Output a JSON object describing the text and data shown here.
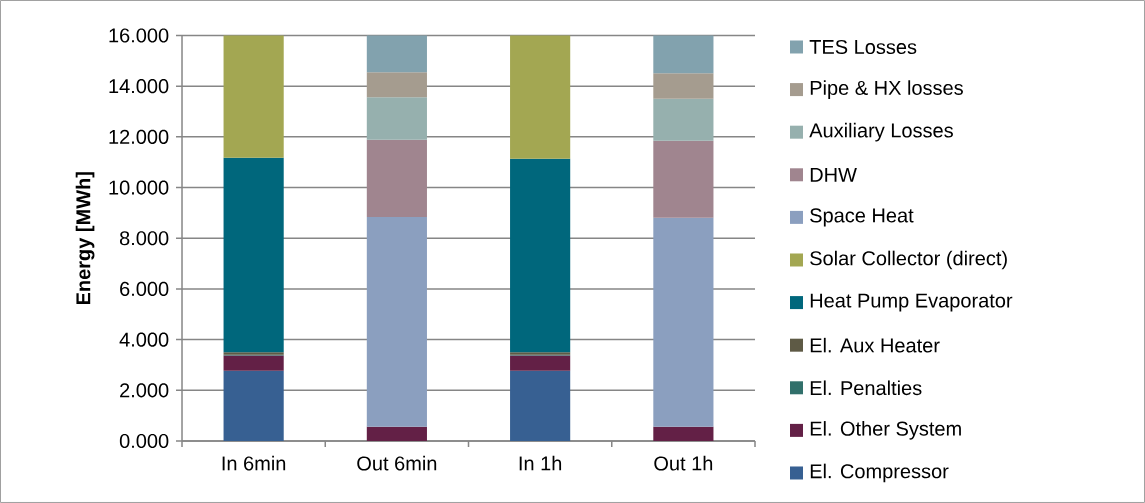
{
  "chart_data": {
    "type": "bar",
    "stacked": true,
    "ylabel": "Energy [MWh]",
    "categories": [
      "In 6min",
      "Out 6min",
      "In 1h",
      "Out 1h"
    ],
    "series": [
      {
        "name": "El. Compressor",
        "color": "#376092",
        "values": [
          2.77,
          null,
          2.77,
          null
        ]
      },
      {
        "name": "El. Other System",
        "color": "#632046",
        "values": [
          0.6,
          0.56,
          0.6,
          0.56
        ]
      },
      {
        "name": "El. Penalties",
        "color": "#31706b",
        "values": [
          0.03,
          null,
          0.03,
          null
        ]
      },
      {
        "name": "El. Aux Heater",
        "color": "#5e5a45",
        "values": [
          0.1,
          null,
          0.1,
          null
        ]
      },
      {
        "name": "Heat Pump Evaporator",
        "color": "#00677c",
        "values": [
          7.68,
          null,
          7.64,
          null
        ]
      },
      {
        "name": "Solar Collector (direct)",
        "color": "#a3a752",
        "values": [
          4.82,
          null,
          4.86,
          null
        ]
      },
      {
        "name": "Space Heat",
        "color": "#8b9fbf",
        "values": [
          null,
          8.28,
          null,
          8.25
        ]
      },
      {
        "name": "DHW",
        "color": "#a0858f",
        "values": [
          null,
          3.05,
          null,
          3.04
        ]
      },
      {
        "name": "Auxiliary Losses",
        "color": "#96b0ae",
        "values": [
          null,
          1.67,
          null,
          1.65
        ]
      },
      {
        "name": "Pipe & HX losses",
        "color": "#a59c8f",
        "values": [
          null,
          0.99,
          null,
          1.01
        ]
      },
      {
        "name": "TES Losses",
        "color": "#82a2ae",
        "values": [
          null,
          1.45,
          null,
          1.49
        ]
      }
    ],
    "ylim": [
      0,
      16
    ],
    "yticks": [
      {
        "value": 0,
        "label": "0.000"
      },
      {
        "value": 2,
        "label": "2.000"
      },
      {
        "value": 4,
        "label": "4.000"
      },
      {
        "value": 6,
        "label": "6.000"
      },
      {
        "value": 8,
        "label": "8.000"
      },
      {
        "value": 10,
        "label": "10.000"
      },
      {
        "value": 12,
        "label": "12.000"
      },
      {
        "value": 14,
        "label": "14.000"
      },
      {
        "value": 16,
        "label": "16.000"
      }
    ],
    "grid": "y",
    "legend": "right"
  }
}
